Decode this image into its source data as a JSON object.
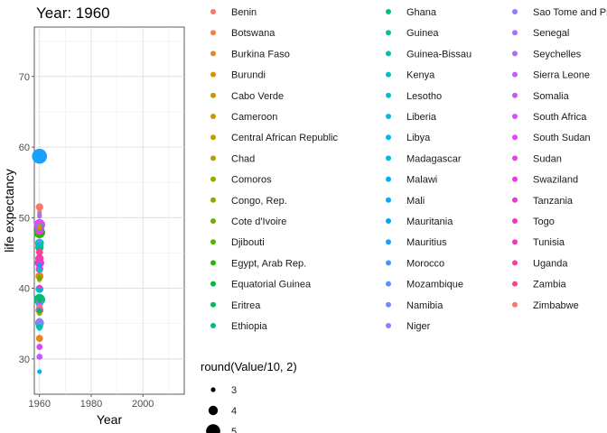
{
  "chart_data": {
    "type": "scatter",
    "title": "Year: 1960",
    "xlabel": "Year",
    "ylabel": "life expectancy",
    "xlim": [
      1958,
      2016
    ],
    "ylim": [
      25,
      77
    ],
    "x_ticks": [
      1960,
      1980,
      2000
    ],
    "y_ticks": [
      30,
      40,
      50,
      60,
      70
    ],
    "grid": true,
    "legend_position": "right",
    "size_legend": {
      "title": "round(Value/10, 2)",
      "entries": [
        {
          "label": "3",
          "value": 3
        },
        {
          "label": "4",
          "value": 4
        },
        {
          "label": "5",
          "value": 5
        }
      ]
    },
    "series": [
      {
        "name": "Benin",
        "color": "#F8766D",
        "x": 1960,
        "y": 37.3,
        "size": 3.4
      },
      {
        "name": "Botswana",
        "color": "#F07E4B",
        "x": 1960,
        "y": 50.8,
        "size": 3.0
      },
      {
        "name": "Burkina Faso",
        "color": "#E88526",
        "x": 1960,
        "y": 32.9,
        "size": 3.5
      },
      {
        "name": "Burundi",
        "color": "#DE8C00",
        "x": 1960,
        "y": 41.6,
        "size": 3.4
      },
      {
        "name": "Cabo Verde",
        "color": "#D39200",
        "x": 1960,
        "y": 48.8,
        "size": 3.0
      },
      {
        "name": "Cameroon",
        "color": "#C79800",
        "x": 1960,
        "y": 41.7,
        "size": 3.7
      },
      {
        "name": "Central African Republic",
        "color": "#B99E00",
        "x": 1960,
        "y": 36.5,
        "size": 3.2
      },
      {
        "name": "Chad",
        "color": "#AAA300",
        "x": 1960,
        "y": 38.0,
        "size": 3.5
      },
      {
        "name": "Comoros",
        "color": "#99A800",
        "x": 1960,
        "y": 41.2,
        "size": 3.0
      },
      {
        "name": "Congo, Rep.",
        "color": "#86AC00",
        "x": 1960,
        "y": 48.5,
        "size": 3.1
      },
      {
        "name": "Cote d'Ivoire",
        "color": "#6FB000",
        "x": 1960,
        "y": 36.9,
        "size": 3.7
      },
      {
        "name": "Djibouti",
        "color": "#53B400",
        "x": 1960,
        "y": 41.5,
        "size": 3.0
      },
      {
        "name": "Egypt, Arab Rep.",
        "color": "#24B700",
        "x": 1960,
        "y": 47.9,
        "size": 4.4
      },
      {
        "name": "Equatorial Guinea",
        "color": "#00BA38",
        "x": 1960,
        "y": 36.8,
        "size": 3.0
      },
      {
        "name": "Eritrea",
        "color": "#00BC59",
        "x": 1960,
        "y": 38.3,
        "size": 3.2
      },
      {
        "name": "Ethiopia",
        "color": "#00BE71",
        "x": 1960,
        "y": 38.4,
        "size": 4.4
      },
      {
        "name": "Ghana",
        "color": "#00BF86",
        "x": 1960,
        "y": 45.8,
        "size": 3.8
      },
      {
        "name": "Guinea",
        "color": "#00C19A",
        "x": 1960,
        "y": 34.6,
        "size": 3.5
      },
      {
        "name": "Guinea-Bissau",
        "color": "#00C1AC",
        "x": 1960,
        "y": 39.7,
        "size": 3.0
      },
      {
        "name": "Kenya",
        "color": "#00C1BD",
        "x": 1960,
        "y": 46.4,
        "size": 3.9
      },
      {
        "name": "Lesotho",
        "color": "#00C0CD",
        "x": 1960,
        "y": 46.1,
        "size": 3.0
      },
      {
        "name": "Liberia",
        "color": "#00BEDB",
        "x": 1960,
        "y": 34.3,
        "size": 3.0
      },
      {
        "name": "Libya",
        "color": "#00BBE8",
        "x": 1960,
        "y": 42.6,
        "size": 3.2
      },
      {
        "name": "Madagascar",
        "color": "#00B7F2",
        "x": 1960,
        "y": 39.9,
        "size": 3.7
      },
      {
        "name": "Malawi",
        "color": "#00B2FA",
        "x": 1960,
        "y": 37.8,
        "size": 3.5
      },
      {
        "name": "Mali",
        "color": "#00ADFE",
        "x": 1960,
        "y": 28.2,
        "size": 3.0
      },
      {
        "name": "Mauritania",
        "color": "#00A6FF",
        "x": 1960,
        "y": 43.3,
        "size": 3.0
      },
      {
        "name": "Mauritius",
        "color": "#19A0FF",
        "x": 1960,
        "y": 58.7,
        "size": 5.2
      },
      {
        "name": "Morocco",
        "color": "#3F98FF",
        "x": 1960,
        "y": 48.5,
        "size": 4.0
      },
      {
        "name": "Mozambique",
        "color": "#5B91FF",
        "x": 1960,
        "y": 35.1,
        "size": 3.9
      },
      {
        "name": "Namibia",
        "color": "#7289FF",
        "x": 1960,
        "y": 46.7,
        "size": 3.0
      },
      {
        "name": "Niger",
        "color": "#8581FF",
        "x": 1960,
        "y": 35.3,
        "size": 3.5
      },
      {
        "name": "Sao Tome and Principe",
        "color": "#9678FF",
        "x": 1960,
        "y": 50.4,
        "size": 3.0
      },
      {
        "name": "Senegal",
        "color": "#A66FFF",
        "x": 1960,
        "y": 38.2,
        "size": 3.5
      },
      {
        "name": "Seychelles",
        "color": "#B466FF",
        "x": 1960,
        "y": 50.2,
        "size": 3.0
      },
      {
        "name": "Sierra Leone",
        "color": "#C05DFF",
        "x": 1960,
        "y": 30.3,
        "size": 3.3
      },
      {
        "name": "Somalia",
        "color": "#CB55FF",
        "x": 1960,
        "y": 36.9,
        "size": 3.4
      },
      {
        "name": "South Africa",
        "color": "#D54DFF",
        "x": 1960,
        "y": 49.0,
        "size": 4.4
      },
      {
        "name": "South Sudan",
        "color": "#DD46F5",
        "x": 1960,
        "y": 31.7,
        "size": 3.3
      },
      {
        "name": "Sudan",
        "color": "#E43FEA",
        "x": 1960,
        "y": 48.2,
        "size": 3.9
      },
      {
        "name": "Swaziland",
        "color": "#EA3ADE",
        "x": 1960,
        "y": 44.0,
        "size": 3.0
      },
      {
        "name": "Tanzania",
        "color": "#EF37D0",
        "x": 1960,
        "y": 43.6,
        "size": 4.0
      },
      {
        "name": "Togo",
        "color": "#F337C2",
        "x": 1960,
        "y": 40.1,
        "size": 3.2
      },
      {
        "name": "Tunisia",
        "color": "#F639B2",
        "x": 1960,
        "y": 42.7,
        "size": 3.6
      },
      {
        "name": "Uganda",
        "color": "#F83DA2",
        "x": 1960,
        "y": 44.2,
        "size": 3.8
      },
      {
        "name": "Zambia",
        "color": "#F94391",
        "x": 1960,
        "y": 45.1,
        "size": 3.5
      },
      {
        "name": "Zimbabwe",
        "color": "#F8766D",
        "x": 1960,
        "y": 51.5,
        "size": 3.6
      }
    ]
  }
}
